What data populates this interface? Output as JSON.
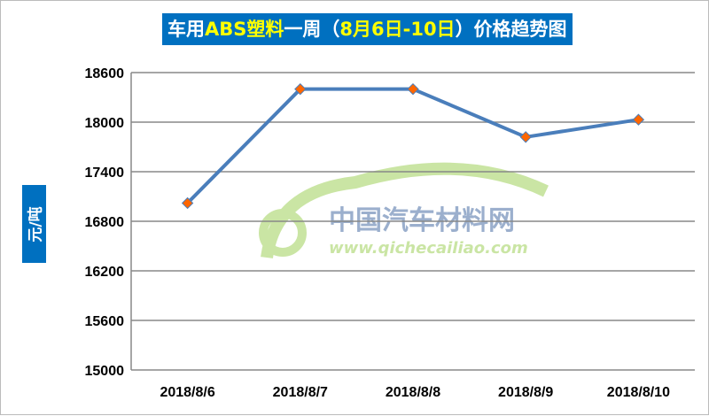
{
  "chart_data": {
    "type": "line",
    "title_parts": [
      {
        "text": "车用",
        "highlight": false
      },
      {
        "text": "ABS塑料",
        "highlight": true
      },
      {
        "text": "一周（",
        "highlight": false
      },
      {
        "text": "8月6日-10日",
        "highlight": true
      },
      {
        "text": "）价格趋势图",
        "highlight": false
      }
    ],
    "ylabel": "元/吨",
    "xlabel": "",
    "categories": [
      "2018/8/6",
      "2018/8/7",
      "2018/8/8",
      "2018/8/9",
      "2018/8/10"
    ],
    "values": [
      17020,
      18400,
      18400,
      17820,
      18030
    ],
    "ylim": [
      15000,
      18600
    ],
    "yticks": [
      15000,
      15600,
      16200,
      16800,
      17400,
      18000,
      18600
    ],
    "grid": true,
    "line_color": "#4a7ebb",
    "marker_color": "#ff6600",
    "title_bg": "#0070c0",
    "highlight_color": "#ffff00",
    "watermark": {
      "name": "中国汽车材料网",
      "url": "www.qichecailiao.com"
    }
  }
}
